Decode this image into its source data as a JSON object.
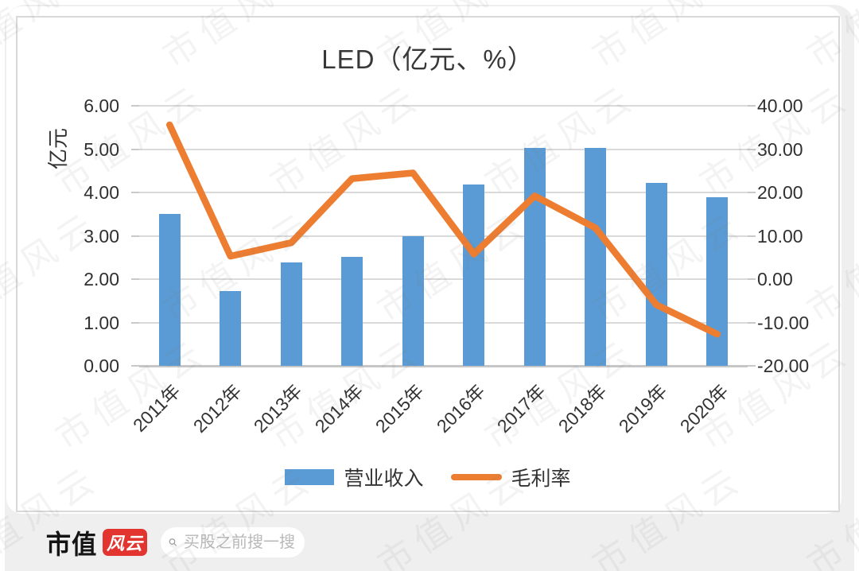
{
  "page": {
    "panel_color": "#efeff0",
    "watermark_text": "市值风云"
  },
  "chart_data": {
    "type": "combo-bar-line",
    "title": "LED（亿元、%）",
    "ylabel_left": "亿元",
    "categories": [
      "2011年",
      "2012年",
      "2013年",
      "2014年",
      "2015年",
      "2016年",
      "2017年",
      "2018年",
      "2019年",
      "2020年"
    ],
    "series": [
      {
        "name": "营业收入",
        "type": "bar",
        "axis": "left",
        "color": "#5B9BD5",
        "values": [
          3.51,
          1.72,
          2.38,
          2.51,
          2.99,
          4.19,
          5.03,
          5.03,
          4.22,
          3.89
        ]
      },
      {
        "name": "毛利率",
        "type": "line",
        "axis": "right",
        "color": "#ED7D31",
        "values": [
          35.6,
          5.3,
          8.4,
          23.2,
          24.5,
          5.8,
          19.2,
          11.8,
          -5.9,
          -12.7
        ]
      }
    ],
    "left_axis": {
      "min": 0,
      "max": 6,
      "ticks": [
        "6.00",
        "5.00",
        "4.00",
        "3.00",
        "2.00",
        "1.00",
        "0.00"
      ]
    },
    "right_axis": {
      "min": -20,
      "max": 40,
      "ticks": [
        "40.00",
        "30.00",
        "20.00",
        "10.00",
        "0.00",
        "-10.00",
        "-20.00"
      ]
    },
    "grid": true,
    "legend_position": "bottom"
  },
  "footer": {
    "logo_text": "市值",
    "logo_badge": "风云",
    "search_placeholder": "买股之前搜一搜"
  }
}
